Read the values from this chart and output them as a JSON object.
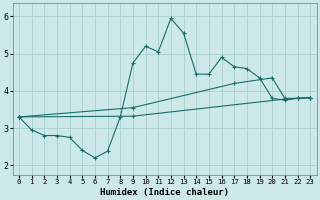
{
  "xlabel": "Humidex (Indice chaleur)",
  "bg_color": "#cce8e8",
  "grid_color": "#aacfcf",
  "line_color": "#1a6b6b",
  "xlim": [
    -0.5,
    23.5
  ],
  "ylim": [
    1.75,
    6.35
  ],
  "xticks": [
    0,
    1,
    2,
    3,
    4,
    5,
    6,
    7,
    8,
    9,
    10,
    11,
    12,
    13,
    14,
    15,
    16,
    17,
    18,
    19,
    20,
    21,
    22,
    23
  ],
  "yticks": [
    2,
    3,
    4,
    5,
    6
  ],
  "line1_x": [
    0,
    1,
    2,
    3,
    4,
    5,
    6,
    7,
    8,
    9,
    10,
    11,
    12,
    13,
    14,
    15,
    16,
    17,
    18,
    19,
    20,
    21,
    22,
    23
  ],
  "line1_y": [
    3.3,
    2.95,
    2.8,
    2.8,
    2.75,
    2.4,
    2.2,
    2.38,
    3.3,
    4.75,
    5.2,
    5.05,
    5.95,
    5.55,
    4.45,
    4.45,
    4.9,
    4.65,
    4.6,
    4.35,
    3.8,
    3.75,
    3.8,
    3.82
  ],
  "line2_x": [
    0,
    9,
    21,
    22,
    23
  ],
  "line2_y": [
    3.3,
    3.32,
    3.78,
    3.8,
    3.82
  ],
  "line3_x": [
    0,
    9,
    17,
    20,
    21,
    22,
    23
  ],
  "line3_y": [
    3.3,
    3.55,
    4.2,
    4.35,
    3.8,
    3.8,
    3.82
  ],
  "figsize": [
    3.2,
    2.0
  ],
  "dpi": 100
}
